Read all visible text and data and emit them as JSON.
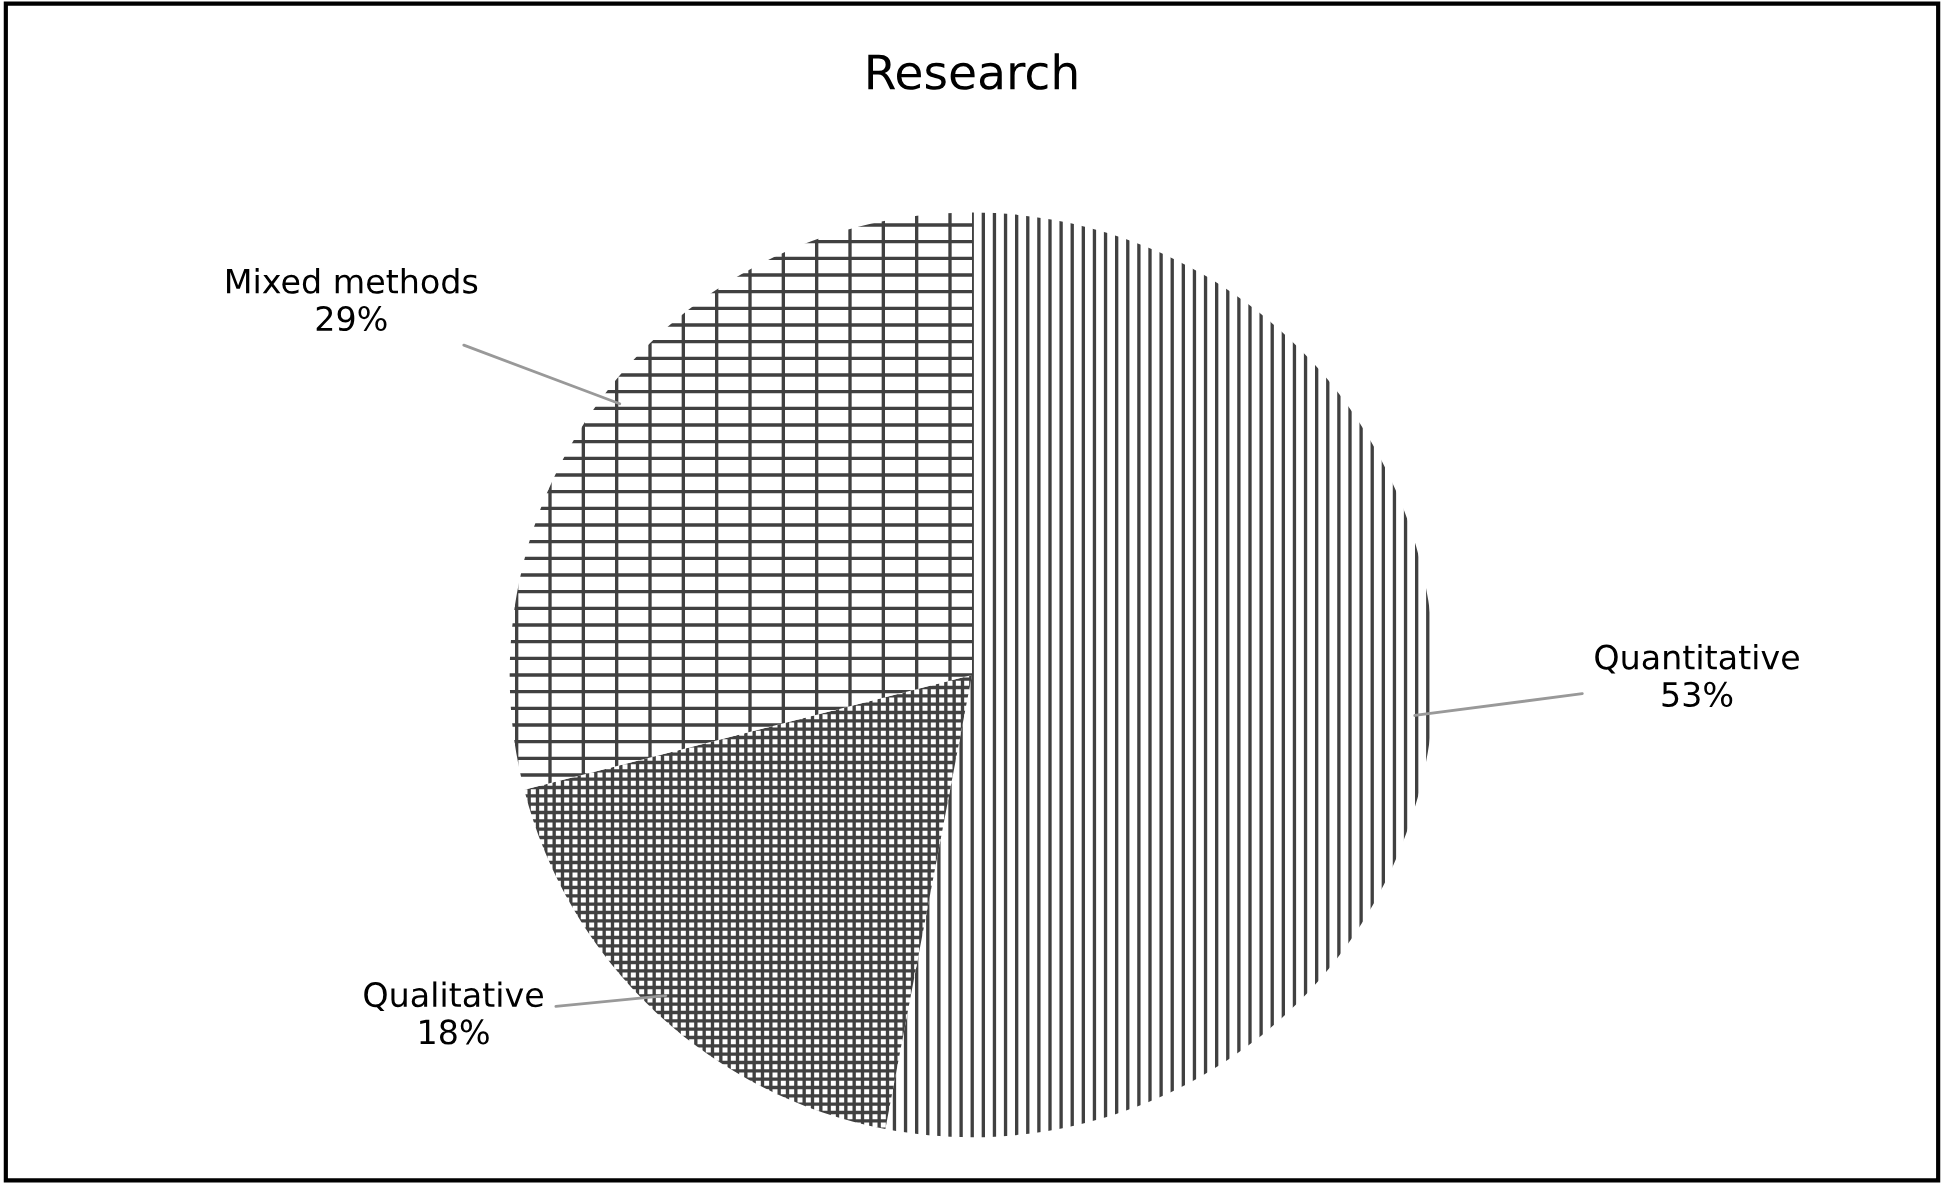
{
  "chart_data": {
    "type": "pie",
    "title": "Research",
    "categories": [
      "Quantitative",
      "Qualitative",
      "Mixed methods"
    ],
    "values": [
      53,
      18,
      29
    ],
    "colors": [
      "#404040",
      "#404040",
      "#404040"
    ],
    "value_labels": [
      "53%",
      "18%",
      "29%"
    ],
    "legend": false
  }
}
